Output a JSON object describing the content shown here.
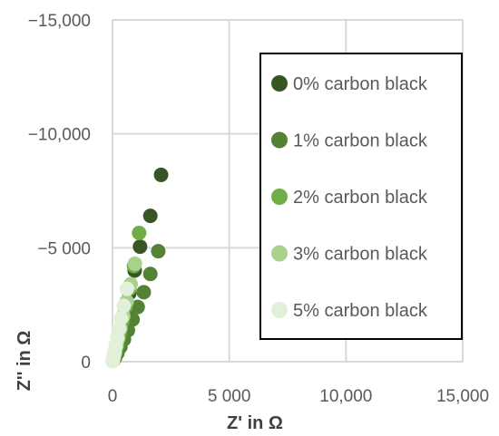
{
  "chart_data": {
    "type": "scatter",
    "xlabel": "Z' in Ω",
    "ylabel": "Z'' in Ω",
    "xlim": [
      0,
      15000
    ],
    "ylim": [
      0,
      -15000
    ],
    "y_axis_reversed": true,
    "grid": true,
    "legend_position": "right",
    "x_ticks": [
      {
        "value": 0,
        "label": "0"
      },
      {
        "value": 5000,
        "label": "5 000"
      },
      {
        "value": 10000,
        "label": "10,000"
      },
      {
        "value": 15000,
        "label": "15,000"
      }
    ],
    "y_ticks": [
      {
        "value": 0,
        "label": "0"
      },
      {
        "value": -5000,
        "label": "−5 000"
      },
      {
        "value": -10000,
        "label": "−10,000"
      },
      {
        "value": -15000,
        "label": "−15,000"
      }
    ],
    "series": [
      {
        "name": "0% carbon black",
        "color": "#375623",
        "points": [
          [
            2080,
            -8200
          ],
          [
            1620,
            -6400
          ],
          [
            1180,
            -5050
          ],
          [
            950,
            -4000
          ],
          [
            720,
            -3000
          ],
          [
            540,
            -2200
          ],
          [
            380,
            -1500
          ],
          [
            250,
            -950
          ],
          [
            150,
            -500
          ],
          [
            70,
            -200
          ],
          [
            20,
            -40
          ]
        ]
      },
      {
        "name": "1% carbon black",
        "color": "#548235",
        "points": [
          [
            1960,
            -4850
          ],
          [
            1620,
            -3850
          ],
          [
            1340,
            -3050
          ],
          [
            1080,
            -2400
          ],
          [
            860,
            -1850
          ],
          [
            660,
            -1380
          ],
          [
            490,
            -980
          ],
          [
            340,
            -650
          ],
          [
            210,
            -380
          ],
          [
            110,
            -180
          ],
          [
            40,
            -60
          ]
        ]
      },
      {
        "name": "2% carbon black",
        "color": "#70AD47",
        "points": [
          [
            1140,
            -5650
          ],
          [
            920,
            -4200
          ],
          [
            730,
            -3200
          ],
          [
            560,
            -2400
          ],
          [
            420,
            -1750
          ],
          [
            300,
            -1200
          ],
          [
            200,
            -750
          ],
          [
            120,
            -420
          ],
          [
            60,
            -180
          ],
          [
            20,
            -50
          ]
        ]
      },
      {
        "name": "3% carbon black",
        "color": "#A9D18E",
        "points": [
          [
            960,
            -4300
          ],
          [
            780,
            -3400
          ],
          [
            610,
            -2650
          ],
          [
            460,
            -2000
          ],
          [
            340,
            -1450
          ],
          [
            240,
            -1000
          ],
          [
            150,
            -620
          ],
          [
            90,
            -330
          ],
          [
            40,
            -130
          ],
          [
            10,
            -30
          ]
        ]
      },
      {
        "name": "5% carbon black",
        "color": "#E2F0D9",
        "points": [
          [
            620,
            -3200
          ],
          [
            480,
            -2450
          ],
          [
            370,
            -1900
          ],
          [
            280,
            -1450
          ],
          [
            200,
            -1050
          ],
          [
            140,
            -720
          ],
          [
            90,
            -450
          ],
          [
            50,
            -250
          ],
          [
            20,
            -100
          ],
          [
            5,
            -20
          ]
        ]
      }
    ]
  }
}
